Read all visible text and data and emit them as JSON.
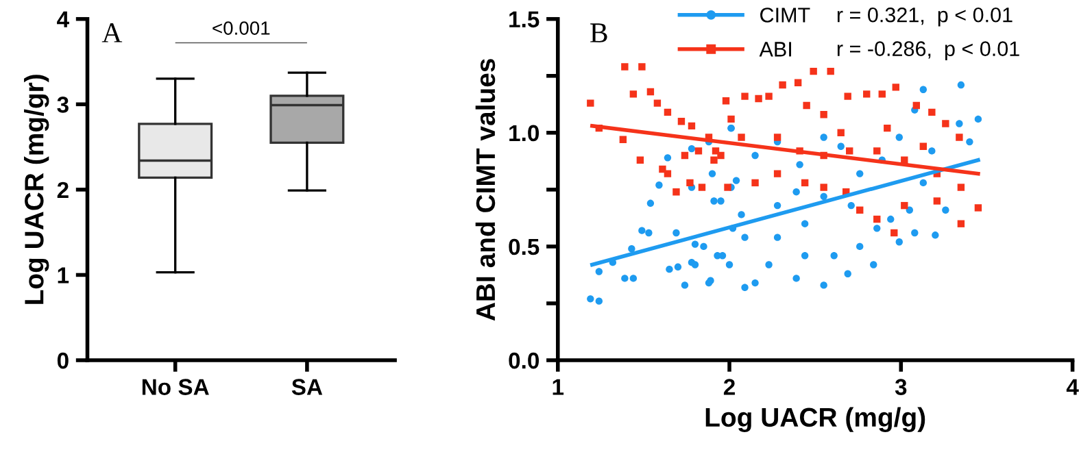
{
  "chart_data": [
    {
      "type": "box",
      "title": "A",
      "ylabel": "Log UACR (mg/gr)",
      "categories": [
        "No SA",
        "SA"
      ],
      "ylim": [
        0,
        4
      ],
      "yticks": [
        0,
        1,
        2,
        3,
        4
      ],
      "grid": false,
      "colors": [
        "#e8e8e8",
        "#a8a8a8"
      ],
      "boxes": [
        {
          "low": 1.03,
          "q1": 2.14,
          "median": 2.34,
          "q3": 2.77,
          "high": 3.3
        },
        {
          "low": 1.99,
          "q1": 2.55,
          "median": 2.99,
          "q3": 3.1,
          "high": 3.37
        }
      ],
      "annotations": [
        "<0.001"
      ]
    },
    {
      "type": "scatter",
      "title": "B",
      "xlabel": "Log UACR (mg/g)",
      "ylabel": "ABI and CIMT values",
      "xlim": [
        1,
        4
      ],
      "xticks": [
        1,
        2,
        3,
        4
      ],
      "ylim": [
        0,
        1.5
      ],
      "yticks": [
        {
          "value": 0,
          "label": "0.0"
        },
        {
          "value": 0.25,
          "label": null
        },
        {
          "value": 0.5,
          "label": "0.5"
        },
        {
          "value": 0.75,
          "label": null
        },
        {
          "value": 1.0,
          "label": "1.0"
        },
        {
          "value": 1.25,
          "label": null
        },
        {
          "value": 1.5,
          "label": "1.5"
        }
      ],
      "grid": false,
      "legend": "top",
      "annotations": [
        "r = 0.321,  p < 0.01",
        "r = -0.286,  p < 0.01"
      ],
      "series": [
        {
          "name": "CIMT",
          "color": "#1e9bf0",
          "marker": "circle",
          "x": [
            1.19,
            1.24,
            1.24,
            1.32,
            1.39,
            1.44,
            1.43,
            1.49,
            1.53,
            1.54,
            1.59,
            1.64,
            1.65,
            1.69,
            1.7,
            1.74,
            1.78,
            1.8,
            1.78,
            1.78,
            1.88,
            1.9,
            1.89,
            1.93,
            1.95,
            2.01,
            2.0,
            2.02,
            2.04,
            1.85,
            1.8,
            1.88,
            1.96,
            2.01,
            2.09,
            2.15,
            2.09,
            2.23,
            2.28,
            2.39,
            2.44,
            2.55,
            2.61,
            2.69,
            2.76,
            2.84,
            2.86,
            2.94,
            2.99,
            3.08,
            3.2,
            3.05,
            3.13,
            3.26,
            3.18,
            3.34,
            3.35,
            3.13,
            3.45,
            3.4,
            3.08,
            2.99,
            2.89,
            2.76,
            2.65,
            2.55,
            2.41,
            2.28,
            2.15,
            2.01,
            1.91,
            2.39,
            2.55,
            2.71,
            2.28,
            2.44,
            2.07
          ],
          "values": [
            0.27,
            0.26,
            0.39,
            0.43,
            0.36,
            0.36,
            0.49,
            0.57,
            0.56,
            0.69,
            0.77,
            0.89,
            0.4,
            0.56,
            0.41,
            0.33,
            0.43,
            0.51,
            0.76,
            0.93,
            0.96,
            0.82,
            0.35,
            0.46,
            0.7,
            1.02,
            0.42,
            0.58,
            0.79,
            0.5,
            0.42,
            0.34,
            0.46,
            1.02,
            0.32,
            0.34,
            0.54,
            0.42,
            0.68,
            0.36,
            0.46,
            0.33,
            0.46,
            0.38,
            0.5,
            0.42,
            0.58,
            0.62,
            0.52,
            0.56,
            0.55,
            0.66,
            0.78,
            0.66,
            0.92,
            1.04,
            1.21,
            1.19,
            1.06,
            0.96,
            1.1,
            0.98,
            0.88,
            0.82,
            0.94,
            0.98,
            0.86,
            0.96,
            0.9,
            0.76,
            0.7,
            0.74,
            0.72,
            0.68,
            0.54,
            0.6,
            0.64
          ]
        },
        {
          "name": "ABI",
          "color": "#f5331a",
          "marker": "square",
          "x": [
            1.19,
            1.24,
            1.39,
            1.49,
            1.44,
            1.54,
            1.58,
            1.64,
            1.61,
            1.64,
            1.48,
            1.38,
            1.72,
            1.74,
            1.78,
            1.82,
            1.84,
            1.88,
            1.92,
            1.95,
            1.98,
            2.01,
            1.69,
            1.77,
            1.99,
            2.09,
            2.17,
            2.23,
            2.31,
            2.4,
            2.49,
            2.59,
            2.45,
            2.55,
            2.69,
            2.8,
            2.89,
            2.97,
            3.09,
            3.18,
            3.26,
            3.34,
            3.35,
            3.35,
            3.45,
            3.21,
            3.02,
            2.96,
            2.86,
            2.76,
            2.68,
            2.55,
            2.44,
            2.28,
            2.15,
            1.91,
            2.07,
            2.28,
            2.41,
            2.55,
            2.7,
            2.86,
            3.02,
            3.13,
            3.21,
            2.65,
            2.92
          ],
          "values": [
            1.13,
            1.02,
            1.29,
            1.29,
            1.17,
            1.18,
            1.13,
            1.09,
            0.84,
            0.82,
            0.88,
            0.97,
            1.05,
            0.9,
            1.03,
            0.92,
            0.76,
            0.98,
            0.92,
            0.9,
            1.14,
            1.06,
            0.74,
            0.78,
            0.76,
            1.16,
            1.15,
            1.16,
            1.21,
            1.22,
            1.27,
            1.27,
            1.12,
            1.08,
            1.16,
            1.17,
            1.17,
            1.2,
            1.12,
            1.09,
            1.04,
            0.98,
            0.76,
            0.6,
            0.67,
            0.7,
            0.68,
            0.56,
            0.62,
            0.66,
            0.74,
            0.76,
            0.78,
            0.82,
            0.78,
            0.88,
            0.98,
            0.98,
            0.92,
            0.9,
            0.92,
            0.92,
            0.88,
            0.94,
            0.82,
            1.0,
            1.02
          ]
        },
        {
          "type": "line",
          "color": "#1e9bf0",
          "x": [
            1.2,
            3.45
          ],
          "values": [
            0.42,
            0.88
          ]
        },
        {
          "type": "line",
          "color": "#f5331a",
          "x": [
            1.2,
            3.45
          ],
          "values": [
            1.03,
            0.82
          ]
        }
      ]
    }
  ]
}
